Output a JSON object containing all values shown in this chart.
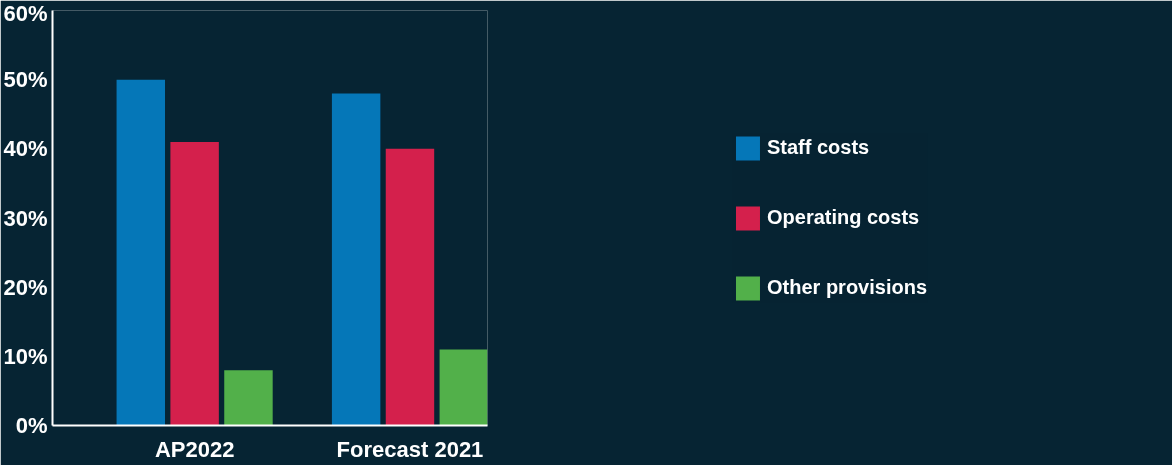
{
  "chart_data": {
    "type": "bar",
    "categories": [
      "AP2022",
      "Forecast 2021"
    ],
    "series": [
      {
        "name": "Staff costs",
        "color": "#0577b8",
        "values": [
          50,
          48
        ]
      },
      {
        "name": "Operating costs",
        "color": "#d4204c",
        "values": [
          41,
          40
        ]
      },
      {
        "name": "Other provisions",
        "color": "#52b04a",
        "values": [
          8,
          11
        ]
      }
    ],
    "ylim": [
      0,
      60
    ],
    "yticks": [
      {
        "value": 0,
        "label": "0%"
      },
      {
        "value": 10,
        "label": "10%"
      },
      {
        "value": 20,
        "label": "20%"
      },
      {
        "value": 30,
        "label": "30%"
      },
      {
        "value": 40,
        "label": "40%"
      },
      {
        "value": 50,
        "label": "50%"
      },
      {
        "value": 60,
        "label": "60%"
      }
    ],
    "grid": false,
    "legend": "right"
  }
}
